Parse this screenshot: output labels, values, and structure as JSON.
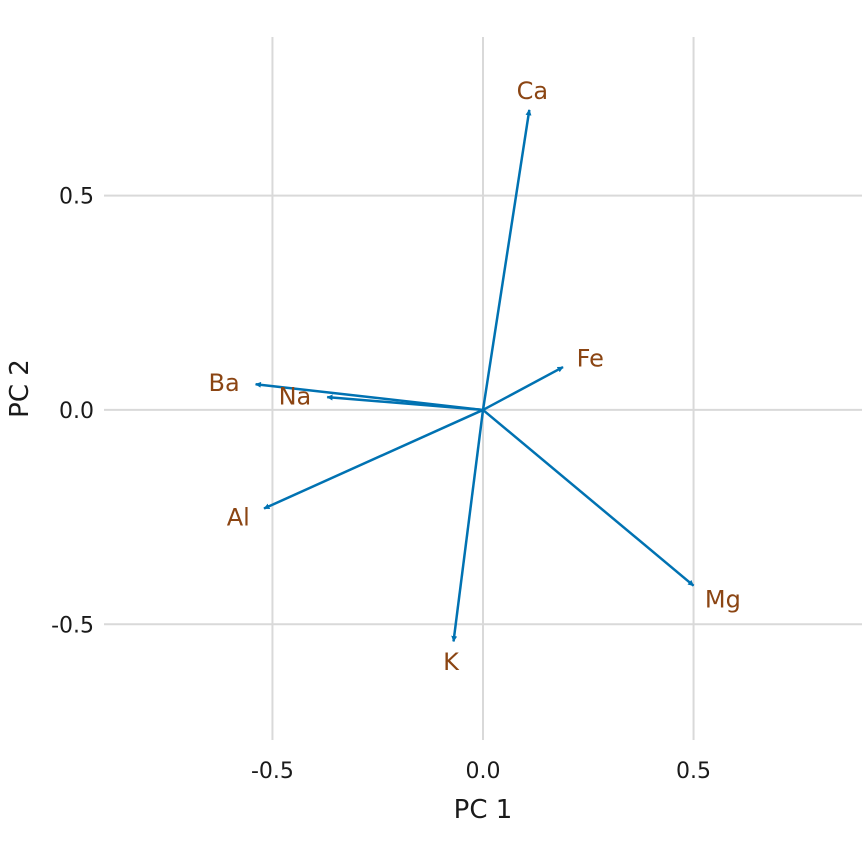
{
  "chart_data": {
    "type": "scatter",
    "subtype": "pca-loadings-biplot",
    "title": "",
    "xlabel": "PC 1",
    "ylabel": "PC 2",
    "xlim": [
      -0.9,
      0.9
    ],
    "ylim": [
      -0.77,
      0.87
    ],
    "x_ticks": [
      -0.5,
      0.0,
      0.5
    ],
    "x_tick_labels": [
      "-0.5",
      "0.0",
      "0.5"
    ],
    "y_ticks": [
      -0.5,
      0.0,
      0.5
    ],
    "y_tick_labels": [
      "-0.5",
      "0.0",
      "0.5"
    ],
    "grid": true,
    "arrows": [
      {
        "name": "Ca",
        "x": 0.11,
        "y": 0.7
      },
      {
        "name": "Fe",
        "x": 0.19,
        "y": 0.1
      },
      {
        "name": "Ba",
        "x": -0.54,
        "y": 0.06
      },
      {
        "name": "Na",
        "x": -0.37,
        "y": 0.03
      },
      {
        "name": "Al",
        "x": -0.52,
        "y": -0.23
      },
      {
        "name": "K",
        "x": -0.07,
        "y": -0.54
      },
      {
        "name": "Mg",
        "x": 0.5,
        "y": -0.41
      }
    ]
  },
  "colors": {
    "arrow": "#0072b2",
    "label": "#8b4513",
    "grid": "#d9d9d9",
    "text": "#1a1a1a"
  }
}
